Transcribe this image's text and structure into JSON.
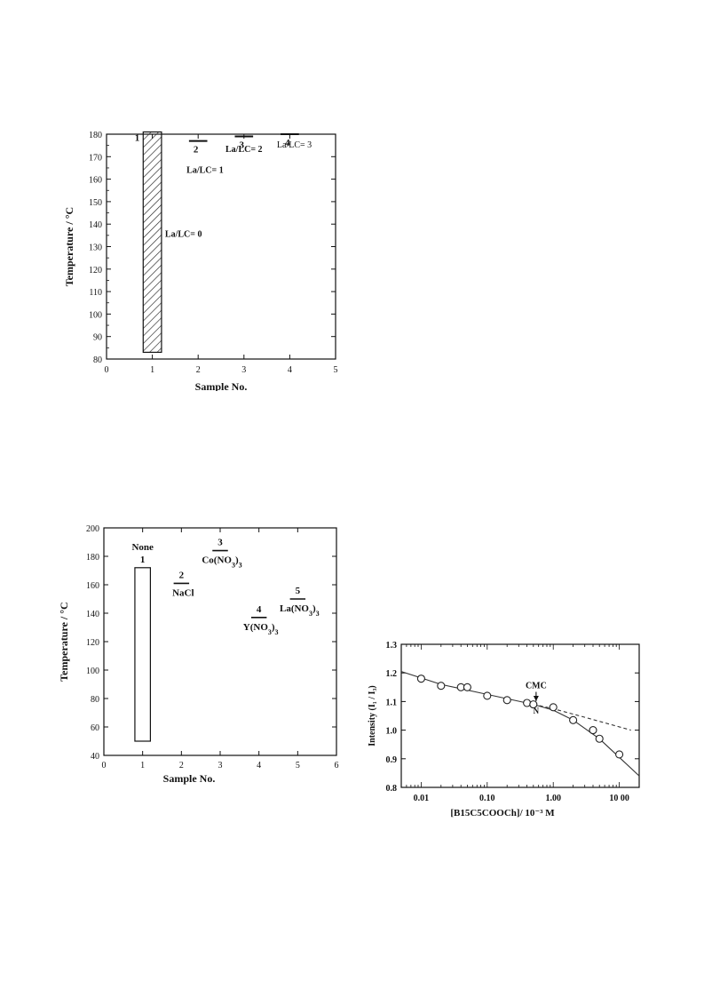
{
  "chart_data": [
    {
      "type": "bar",
      "xlabel": "Sample No.",
      "ylabel": "Temperature / °C",
      "xlim": [
        0,
        5
      ],
      "ylim": [
        80,
        180
      ],
      "xticks": [
        "0",
        "1",
        "2",
        "3",
        "4",
        "5"
      ],
      "yticks": [
        "80",
        "90",
        "100",
        "110",
        "120",
        "130",
        "140",
        "150",
        "160",
        "170",
        "180"
      ],
      "samples": [
        {
          "sample": 1,
          "number_label": "1",
          "label": "La/LC= 0",
          "range": [
            83,
            181
          ],
          "style": "hatched-bar"
        },
        {
          "sample": 2,
          "number_label": "2",
          "label": "La/LC= 1",
          "value": 177,
          "style": "line"
        },
        {
          "sample": 3,
          "number_label": "3",
          "label": "La/LC= 2",
          "value": 179,
          "style": "line"
        },
        {
          "sample": 4,
          "number_label": "4",
          "label": "La/LC= 3",
          "value": 180,
          "style": "line"
        }
      ]
    },
    {
      "type": "bar",
      "xlabel": "Sample No.",
      "ylabel": "Temperature / °C",
      "xlim": [
        0,
        6
      ],
      "ylim": [
        40,
        200
      ],
      "xticks": [
        "0",
        "1",
        "2",
        "3",
        "4",
        "5",
        "6"
      ],
      "yticks": [
        "40",
        "60",
        "80",
        "100",
        "120",
        "140",
        "160",
        "180",
        "200"
      ],
      "samples": [
        {
          "sample": 1,
          "number_label": "1",
          "label": "None",
          "range": [
            50,
            172
          ],
          "style": "open-bar"
        },
        {
          "sample": 2,
          "number_label": "2",
          "label": "NaCl",
          "value": 161,
          "style": "line"
        },
        {
          "sample": 3,
          "number_label": "3",
          "label": "Co(NO3)3",
          "value": 184,
          "style": "line"
        },
        {
          "sample": 4,
          "number_label": "4",
          "label": "Y(NO3)3",
          "value": 137,
          "style": "line"
        },
        {
          "sample": 5,
          "number_label": "5",
          "label": "La(NO3)3",
          "value": 150,
          "style": "line"
        }
      ]
    },
    {
      "type": "scatter",
      "xscale": "log",
      "xlabel": "[B15C5COOCh]/ 10⁻³ M",
      "ylabel": "Intensity (I₁ / I₃)",
      "xlim": [
        0.005,
        20
      ],
      "ylim": [
        0.8,
        1.3
      ],
      "xticks": [
        {
          "value": 0.01,
          "label": "0.01"
        },
        {
          "value": 0.1,
          "label": "0.10"
        },
        {
          "value": 1,
          "label": "1.00"
        },
        {
          "value": 10,
          "label": "10 00"
        }
      ],
      "yticks": [
        "0.8",
        "0.9",
        "1.0",
        "1.1",
        "1.2",
        "1.3"
      ],
      "points": [
        {
          "x": 0.01,
          "y": 1.18
        },
        {
          "x": 0.02,
          "y": 1.155
        },
        {
          "x": 0.04,
          "y": 1.15
        },
        {
          "x": 0.05,
          "y": 1.15
        },
        {
          "x": 0.1,
          "y": 1.12
        },
        {
          "x": 0.2,
          "y": 1.105
        },
        {
          "x": 0.4,
          "y": 1.095
        },
        {
          "x": 0.5,
          "y": 1.09
        },
        {
          "x": 1.0,
          "y": 1.08
        },
        {
          "x": 2.0,
          "y": 1.035
        },
        {
          "x": 4.0,
          "y": 1.0
        },
        {
          "x": 5.0,
          "y": 0.97
        },
        {
          "x": 10.0,
          "y": 0.915
        }
      ],
      "fit_curve": [
        [
          0.005,
          1.205
        ],
        [
          0.02,
          1.16
        ],
        [
          0.1,
          1.125
        ],
        [
          0.5,
          1.09
        ],
        [
          1.0,
          1.07
        ],
        [
          2.0,
          1.035
        ],
        [
          5.0,
          0.97
        ],
        [
          10.0,
          0.905
        ],
        [
          20.0,
          0.84
        ]
      ],
      "extrapolation": [
        [
          0.5,
          1.09
        ],
        [
          1.0,
          1.075
        ],
        [
          3.0,
          1.045
        ],
        [
          15.0,
          1.0
        ]
      ],
      "annotations": [
        {
          "text": "CMC",
          "x": 0.55,
          "y": 1.14
        },
        {
          "text": "N",
          "x": 0.55,
          "y": 1.07
        }
      ]
    }
  ]
}
